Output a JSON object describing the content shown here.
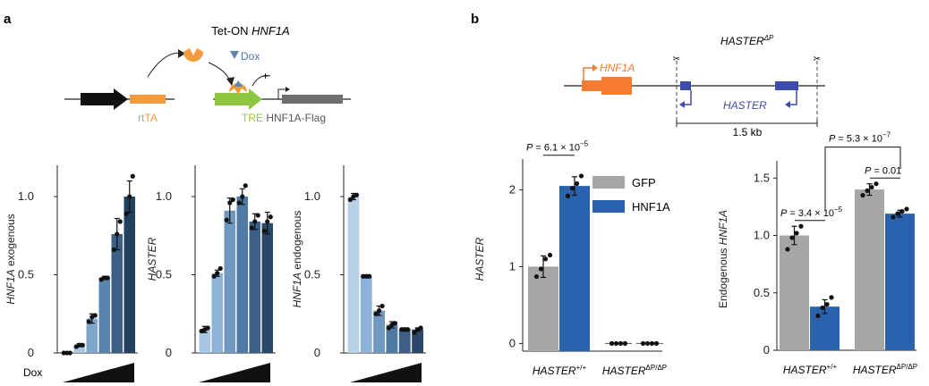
{
  "panels": {
    "a": "a",
    "b": "b"
  },
  "schematic_a": {
    "construct_title": "Tet-ON ",
    "construct_gene": "HNF1A",
    "dox_label": "Dox",
    "plus_label": "+",
    "rtta_label": "rtTA",
    "tre_label": "TRE",
    "flag_label": "HNF1A-Flag"
  },
  "schematic_b": {
    "title": "HASTER",
    "title_sup": "ΔP",
    "hnf1a_label": "HNF1A",
    "haster_label": "HASTER",
    "scale_label": "1.5 kb"
  },
  "x_dox_label": "Dox",
  "chart_data": [
    {
      "type": "bar",
      "ylabel_italic": "HNF1A",
      "ylabel_rest": " exogenous",
      "ylim": [
        0,
        1.2
      ],
      "yticks": [
        "0",
        "0.5",
        "1.0"
      ],
      "ytick_values": [
        0,
        0.5,
        1.0
      ],
      "values": [
        0.0,
        0.05,
        0.22,
        0.48,
        0.76,
        1.0
      ],
      "errors": [
        0.005,
        0.01,
        0.03,
        0.01,
        0.1,
        0.1
      ],
      "points": [
        [
          0,
          0,
          0
        ],
        [
          0.04,
          0.05,
          0.05
        ],
        [
          0.2,
          0.23,
          0.24
        ],
        [
          0.47,
          0.48,
          0.48
        ],
        [
          0.66,
          0.76,
          0.84
        ],
        [
          0.89,
          1.0,
          1.13
        ]
      ],
      "colors": [
        "#d4e3f1",
        "#a9c6e2",
        "#7ea6cb",
        "#5a84ad",
        "#3b5f86",
        "#22405f"
      ]
    },
    {
      "type": "bar",
      "ylabel_italic": "HASTER",
      "ylabel_rest": "",
      "ylim": [
        0,
        1.2
      ],
      "yticks": [
        "0",
        "0.5",
        "1.0"
      ],
      "ytick_values": [
        0,
        0.5,
        1.0
      ],
      "values": [
        0.15,
        0.51,
        0.91,
        1.0,
        0.84,
        0.83
      ],
      "errors": [
        0.02,
        0.02,
        0.08,
        0.05,
        0.05,
        0.07
      ],
      "points": [
        [
          0.14,
          0.15,
          0.16
        ],
        [
          0.49,
          0.51,
          0.54
        ],
        [
          0.85,
          0.96,
          0.98
        ],
        [
          0.96,
          1.0,
          1.07
        ],
        [
          0.8,
          0.84,
          0.88
        ],
        [
          0.78,
          0.84,
          0.87
        ]
      ],
      "colors": [
        "#a9c6e2",
        "#8db3d8",
        "#6f97c0",
        "#4f7aa4",
        "#3b5f86",
        "#2a4869"
      ]
    },
    {
      "type": "bar",
      "ylabel_italic": "HNF1A",
      "ylabel_rest": " endogenous",
      "ylim": [
        0,
        1.2
      ],
      "yticks": [
        "0",
        "0.5",
        "1.0"
      ],
      "ytick_values": [
        0,
        0.5,
        1.0
      ],
      "values": [
        1.0,
        0.49,
        0.27,
        0.18,
        0.15,
        0.15
      ],
      "errors": [
        0.02,
        0.01,
        0.03,
        0.02,
        0.01,
        0.01
      ],
      "points": [
        [
          0.98,
          1.0,
          1.01
        ],
        [
          0.49,
          0.49,
          0.49
        ],
        [
          0.25,
          0.27,
          0.3
        ],
        [
          0.16,
          0.18,
          0.19
        ],
        [
          0.15,
          0.15,
          0.15
        ],
        [
          0.13,
          0.15,
          0.16
        ]
      ],
      "colors": [
        "#b9d1e8",
        "#8db3d8",
        "#6f97c0",
        "#4f7aa4",
        "#3b5f86",
        "#2a4869"
      ]
    },
    {
      "type": "bar",
      "ylabel_italic": "HASTER",
      "ylabel_rest": "",
      "ylim": [
        -0.1,
        2.4
      ],
      "yticks": [
        "0",
        "1",
        "2"
      ],
      "ytick_values": [
        0,
        1,
        2
      ],
      "groups": [
        "HASTER",
        "HASTER"
      ],
      "group_sups": [
        "+/+",
        "ΔP/ΔP"
      ],
      "legend": [
        "GFP",
        "HNF1A"
      ],
      "series": [
        {
          "name": "GFP",
          "values": [
            1.0,
            0.0
          ],
          "errors": [
            0.14,
            0.0
          ],
          "points": [
            [
              0.87,
              0.97,
              1.1,
              1.15
            ],
            [
              0,
              0,
              0,
              0
            ]
          ],
          "color": "#a6a6a6"
        },
        {
          "name": "HNF1A",
          "values": [
            2.05,
            0.0
          ],
          "errors": [
            0.12,
            0.0
          ],
          "points": [
            [
              1.92,
              2.02,
              2.08,
              2.18
            ],
            [
              0,
              0,
              0,
              0
            ]
          ],
          "color": "#2a62ae"
        }
      ],
      "pvalues": [
        {
          "text_pre": "P = 6.1 × 10",
          "exp": "−5",
          "between": [
            0,
            1
          ],
          "y": 2.45
        }
      ]
    },
    {
      "type": "bar",
      "ylabel_pre": "Endogenous ",
      "ylabel_italic": "HNF1A",
      "ylim": [
        0,
        1.65
      ],
      "yticks": [
        "0",
        "0.5",
        "1.0",
        "1.5"
      ],
      "ytick_values": [
        0,
        0.5,
        1.0,
        1.5
      ],
      "groups": [
        "HASTER",
        "HASTER"
      ],
      "group_sups": [
        "+/+",
        "ΔP/ΔP"
      ],
      "series": [
        {
          "name": "GFP",
          "values": [
            1.0,
            1.4
          ],
          "errors": [
            0.08,
            0.05
          ],
          "points": [
            [
              0.88,
              0.98,
              1.02,
              1.08
            ],
            [
              1.35,
              1.39,
              1.42,
              1.45
            ]
          ],
          "color": "#a6a6a6"
        },
        {
          "name": "HNF1A",
          "values": [
            0.38,
            1.19
          ],
          "errors": [
            0.06,
            0.03
          ],
          "points": [
            [
              0.3,
              0.37,
              0.4,
              0.46
            ],
            [
              1.16,
              1.19,
              1.21,
              1.23
            ]
          ],
          "color": "#2a62ae"
        }
      ],
      "pvalues": [
        {
          "text_pre": "P = 3.4 × 10",
          "exp": "−5",
          "label": "p1"
        },
        {
          "text_pre": "P = 0.01",
          "exp": "",
          "label": "p2"
        },
        {
          "text_pre": "P = 5.3 × 10",
          "exp": "−7",
          "label": "p3"
        }
      ]
    }
  ]
}
